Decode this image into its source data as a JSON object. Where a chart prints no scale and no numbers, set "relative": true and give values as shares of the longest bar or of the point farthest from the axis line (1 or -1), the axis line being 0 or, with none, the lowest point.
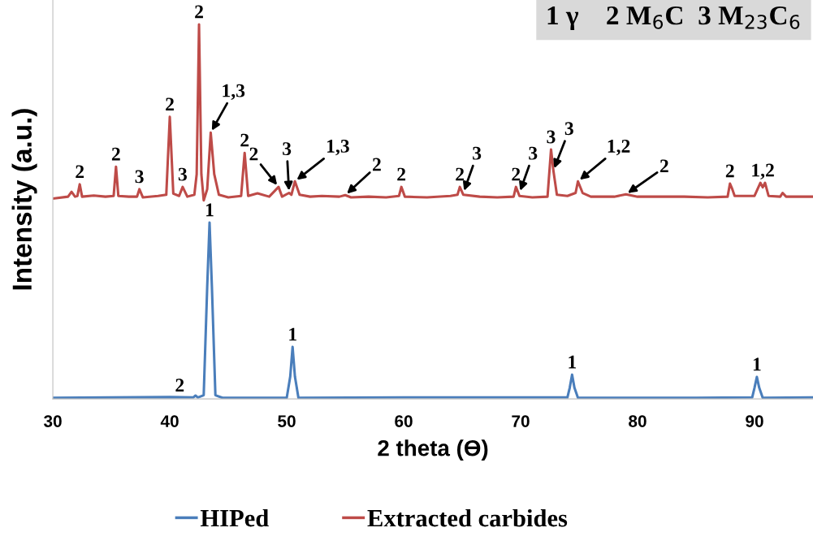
{
  "chart_data": {
    "type": "line",
    "relative": true,
    "xlabel": "2 theta (ϴ)",
    "ylabel": "Intensity (a.u.)",
    "xlim": [
      30,
      95
    ],
    "xticks": [
      30,
      40,
      50,
      60,
      70,
      80,
      90
    ],
    "grid": false,
    "legend": "bottom",
    "marker": "none",
    "line_style": "solid",
    "series": [
      {
        "name": "HIPed",
        "color": "#4a7ebb",
        "x": [
          30,
          40,
          42,
          42.2,
          42.4,
          42.9,
          43.2,
          43.4,
          43.6,
          43.9,
          44.5,
          50,
          50.3,
          50.5,
          50.7,
          51,
          60,
          74.0,
          74.2,
          74.4,
          74.6,
          74.9,
          85,
          89.8,
          90.0,
          90.2,
          90.4,
          90.7,
          95
        ],
        "values": [
          0.003,
          0.005,
          0.004,
          0.009,
          0.004,
          0.01,
          0.3,
          0.471,
          0.3,
          0.01,
          0.003,
          0.003,
          0.06,
          0.139,
          0.06,
          0.003,
          0.004,
          0.004,
          0.03,
          0.065,
          0.03,
          0.003,
          0.003,
          0.004,
          0.03,
          0.059,
          0.03,
          0.003,
          0.004
        ]
      },
      {
        "name": "Extracted carbides",
        "color": "#be4b48",
        "x": [
          30,
          31.3,
          31.6,
          31.9,
          32.1,
          32.3,
          32.5,
          33.5,
          34.5,
          35.2,
          35.4,
          35.6,
          36.5,
          37.2,
          37.4,
          37.7,
          39.0,
          39.7,
          40.0,
          40.3,
          40.8,
          41.1,
          41.5,
          42.1,
          42.3,
          42.5,
          42.7,
          42.9,
          43.2,
          43.5,
          43.8,
          44.2,
          45,
          46.1,
          46.4,
          46.7,
          47.5,
          48.5,
          49.3,
          49.6,
          50.2,
          50.4,
          50.7,
          51.1,
          52,
          53,
          54.5,
          55,
          55.5,
          57,
          58.5,
          59.6,
          59.8,
          60.1,
          62,
          64,
          64.6,
          64.8,
          65.1,
          66.5,
          68,
          69.4,
          69.6,
          69.9,
          71,
          72.3,
          72.6,
          72.8,
          73.1,
          74,
          74.7,
          74.9,
          75.3,
          76,
          78,
          79,
          80,
          82,
          84,
          86,
          87.7,
          87.9,
          88.1,
          88.3,
          90,
          90.5,
          90.7,
          90.9,
          91.2,
          92.2,
          92.4,
          92.7,
          94,
          95
        ],
        "values": [
          0.535,
          0.54,
          0.553,
          0.54,
          0.542,
          0.573,
          0.54,
          0.543,
          0.54,
          0.542,
          0.62,
          0.542,
          0.54,
          0.54,
          0.56,
          0.538,
          0.542,
          0.545,
          0.753,
          0.548,
          0.542,
          0.566,
          0.54,
          0.545,
          0.6,
          1.0,
          0.6,
          0.53,
          0.56,
          0.711,
          0.6,
          0.545,
          0.538,
          0.542,
          0.657,
          0.542,
          0.549,
          0.54,
          0.566,
          0.54,
          0.55,
          0.545,
          0.581,
          0.545,
          0.54,
          0.542,
          0.54,
          0.544,
          0.538,
          0.54,
          0.538,
          0.542,
          0.566,
          0.54,
          0.538,
          0.542,
          0.545,
          0.566,
          0.545,
          0.54,
          0.538,
          0.54,
          0.566,
          0.542,
          0.538,
          0.54,
          0.666,
          0.61,
          0.545,
          0.542,
          0.55,
          0.581,
          0.55,
          0.54,
          0.54,
          0.546,
          0.54,
          0.54,
          0.54,
          0.538,
          0.54,
          0.575,
          0.56,
          0.542,
          0.542,
          0.577,
          0.565,
          0.577,
          0.542,
          0.54,
          0.55,
          0.54,
          0.54,
          0.54
        ]
      }
    ],
    "annotations": [
      "1 γ    2 M$_{6}$C  3 M$_{23}$C$_{6}$",
      {
        "text": "2",
        "x": 32.3,
        "y": 0.573
      },
      {
        "text": "2",
        "x": 35.4,
        "y": 0.62
      },
      {
        "text": "3",
        "x": 37.4,
        "y": 0.56
      },
      {
        "text": "2",
        "x": 40.0,
        "y": 0.753
      },
      {
        "text": "3",
        "x": 41.1,
        "y": 0.566
      },
      {
        "text": "2",
        "x": 42.5,
        "y": 1.0
      },
      {
        "text": "1,3",
        "x": 43.5,
        "y": 0.711
      },
      {
        "text": "2",
        "x": 46.4,
        "y": 0.657
      },
      {
        "text": "2",
        "x": 49.3,
        "y": 0.566
      },
      {
        "text": "3",
        "x": 50.2,
        "y": 0.55
      },
      {
        "text": "1,3",
        "x": 50.7,
        "y": 0.581
      },
      {
        "text": "2",
        "x": 55,
        "y": 0.544
      },
      {
        "text": "2",
        "x": 59.8,
        "y": 0.566
      },
      {
        "text": "2",
        "x": 64.8,
        "y": 0.566
      },
      {
        "text": "3",
        "x": 65.1,
        "y": 0.55
      },
      {
        "text": "2",
        "x": 69.6,
        "y": 0.566
      },
      {
        "text": "3",
        "x": 69.9,
        "y": 0.55
      },
      {
        "text": "3",
        "x": 72.6,
        "y": 0.666
      },
      {
        "text": "3",
        "x": 72.8,
        "y": 0.61
      },
      {
        "text": "1,2",
        "x": 74.9,
        "y": 0.581
      },
      {
        "text": "2",
        "x": 79,
        "y": 0.546
      },
      {
        "text": "2",
        "x": 87.9,
        "y": 0.575
      },
      {
        "text": "1,2",
        "x": 90.7,
        "y": 0.577
      },
      {
        "text": "2",
        "x": 42.2,
        "y": 0.009
      },
      {
        "text": "1",
        "x": 43.4,
        "y": 0.471
      },
      {
        "text": "1",
        "x": 50.5,
        "y": 0.139
      },
      {
        "text": "1",
        "x": 74.4,
        "y": 0.065
      },
      {
        "text": "1",
        "x": 90.2,
        "y": 0.059
      }
    ]
  }
}
